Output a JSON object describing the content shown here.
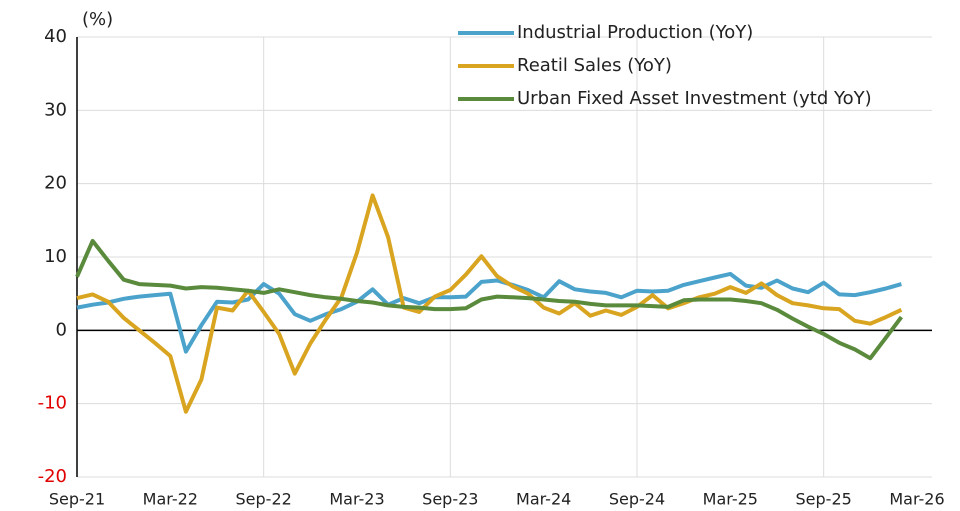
{
  "chart_data": {
    "type": "line",
    "y_unit_label": "(%)",
    "categories": [
      "Sep-21",
      null,
      null,
      null,
      null,
      null,
      "Mar-22",
      null,
      null,
      null,
      null,
      null,
      "Sep-22",
      null,
      null,
      null,
      null,
      null,
      "Mar-23",
      null,
      null,
      null,
      null,
      null,
      "Sep-23",
      null,
      null,
      null,
      null,
      null,
      "Mar-24",
      null,
      null,
      null,
      null,
      null,
      "Sep-24",
      null,
      null,
      null,
      null,
      null,
      "Mar-25",
      null,
      null,
      null,
      null,
      null,
      "Sep-25",
      null,
      null,
      null,
      null,
      null,
      "Mar-26"
    ],
    "series": [
      {
        "name": "Industrial Production (YoY)",
        "color": "#4ba3cc",
        "values": [
          3.1,
          3.5,
          3.8,
          4.3,
          4.6,
          4.8,
          5.0,
          -2.9,
          0.7,
          3.9,
          3.8,
          4.2,
          6.3,
          5.0,
          2.2,
          1.3,
          2.2,
          2.9,
          3.9,
          5.6,
          3.5,
          4.4,
          3.7,
          4.5,
          4.5,
          4.6,
          6.6,
          6.8,
          6.2,
          5.5,
          4.5,
          6.7,
          5.6,
          5.3,
          5.1,
          4.5,
          5.4,
          5.3,
          5.4,
          6.2,
          6.7,
          7.2,
          7.7,
          6.1,
          5.8,
          6.8,
          5.7,
          5.2,
          6.5,
          4.9,
          4.8,
          5.2,
          5.7,
          6.3,
          null
        ]
      },
      {
        "name": "Reatil Sales (YoY)",
        "color": "#d9a520",
        "values": [
          4.4,
          4.9,
          3.9,
          1.7,
          0.0,
          -1.7,
          -3.5,
          -11.1,
          -6.7,
          3.1,
          2.7,
          5.4,
          2.5,
          -0.5,
          -5.9,
          -1.8,
          1.5,
          4.5,
          10.6,
          18.4,
          12.7,
          3.1,
          2.5,
          4.6,
          5.5,
          7.6,
          10.1,
          7.4,
          6.0,
          5.0,
          3.1,
          2.3,
          3.7,
          2.0,
          2.7,
          2.1,
          3.2,
          4.8,
          3.0,
          3.7,
          4.5,
          5.0,
          5.9,
          5.1,
          6.4,
          4.8,
          3.7,
          3.4,
          3.0,
          2.9,
          1.3,
          0.9,
          1.8,
          2.8,
          null
        ]
      },
      {
        "name": "Urban Fixed Asset Investment (ytd YoY)",
        "color": "#5a8a3c",
        "values": [
          7.3,
          12.2,
          9.5,
          6.9,
          6.3,
          6.2,
          6.1,
          5.7,
          5.9,
          5.8,
          5.6,
          5.4,
          5.1,
          5.6,
          5.2,
          4.8,
          4.5,
          4.3,
          4.0,
          3.8,
          3.4,
          3.2,
          3.1,
          2.9,
          2.9,
          3.0,
          4.2,
          4.6,
          4.5,
          4.4,
          4.2,
          4.0,
          3.9,
          3.6,
          3.4,
          3.4,
          3.4,
          3.3,
          3.2,
          4.1,
          4.2,
          4.2,
          4.2,
          4.0,
          3.7,
          2.8,
          1.6,
          0.5,
          -0.5,
          -1.7,
          -2.6,
          -3.8,
          -1.0,
          1.8,
          null
        ]
      }
    ],
    "ylim": [
      -20,
      40
    ],
    "yticks": [
      -20,
      -10,
      0,
      10,
      20,
      30,
      40
    ],
    "grid": true,
    "legend": "upper-right",
    "negative_tick_color": "#e00000"
  }
}
